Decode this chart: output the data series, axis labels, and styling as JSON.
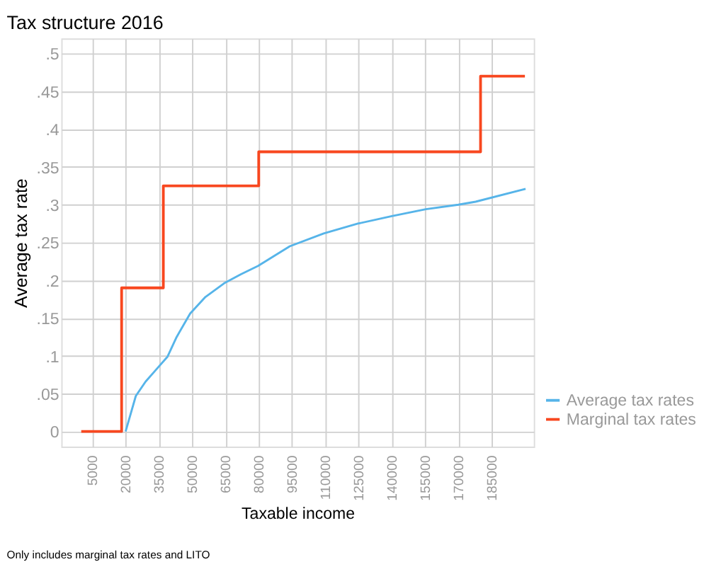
{
  "chart_data": {
    "type": "line",
    "title": "Tax structure 2016",
    "xlabel": "Taxable income",
    "ylabel": "Average tax rate",
    "annotations": [
      "Only includes marginal tax rates and LITO"
    ],
    "series": [
      {
        "name": "Average tax rates",
        "color": "#56b4e9",
        "x": [
          20000,
          24600,
          29000,
          33800,
          38900,
          43000,
          49100,
          56000,
          64400,
          72000,
          79700,
          94000,
          109300,
          124700,
          140000,
          155300,
          170000,
          177800,
          200300
        ],
        "values": [
          0,
          0.047,
          0.066,
          0.082,
          0.099,
          0.125,
          0.156,
          0.178,
          0.196,
          0.208,
          0.219,
          0.245,
          0.262,
          0.275,
          0.285,
          0.294,
          0.3,
          0.304,
          0.321
        ]
      },
      {
        "name": "Marginal tax rates",
        "type": "step",
        "color": "#f8471f",
        "x": [
          0,
          18200,
          37000,
          80000,
          180000,
          200000
        ],
        "values": [
          0,
          0.19,
          0.325,
          0.37,
          0.47,
          0.47
        ]
      }
    ],
    "xlim": [
      -9000,
      204000
    ],
    "xticks": [
      5000,
      20000,
      35000,
      50000,
      65000,
      80000,
      95000,
      110000,
      125000,
      140000,
      155000,
      170000,
      185000
    ],
    "ylim": [
      -0.02,
      0.52
    ],
    "yticks": [
      {
        "value": 0,
        "label": "0"
      },
      {
        "value": 0.05,
        "label": ".05"
      },
      {
        "value": 0.1,
        "label": ".1"
      },
      {
        "value": 0.15,
        "label": ".15"
      },
      {
        "value": 0.2,
        "label": ".2"
      },
      {
        "value": 0.25,
        "label": ".25"
      },
      {
        "value": 0.3,
        "label": ".3"
      },
      {
        "value": 0.35,
        "label": ".35"
      },
      {
        "value": 0.4,
        "label": ".4"
      },
      {
        "value": 0.45,
        "label": ".45"
      },
      {
        "value": 0.5,
        "label": ".5"
      }
    ],
    "grid": true,
    "legend": "right",
    "marker": "none"
  }
}
